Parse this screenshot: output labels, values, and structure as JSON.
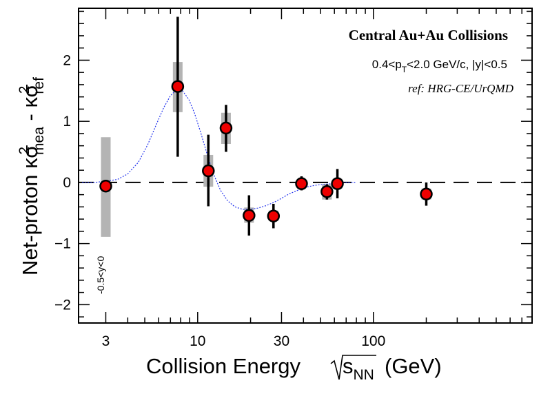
{
  "chart_data": {
    "type": "scatter",
    "title": "Central Au+Au Collisions",
    "subtitle": "0.4<p_T<2.0 GeV/c, |y|<0.5",
    "ref_note": "ref: HRG-CE/UrQMD",
    "side_note": "-0.5<y<0",
    "xlabel": {
      "main": "Collision Energy",
      "sqrt": "s",
      "sub": "NN",
      "unit": "(GeV)"
    },
    "ylabel": {
      "prefix": "Net-proton κσ",
      "sup1": "2",
      "sub1": "mea",
      "mid": " - κσ",
      "sup2": "2",
      "sub2": "ref"
    },
    "x_scale": "log",
    "xlim": [
      2.1,
      800
    ],
    "ylim": [
      -2.3,
      2.85
    ],
    "xticks": [
      3,
      10,
      30,
      100
    ],
    "xtick_labels": [
      "3",
      "10",
      "30",
      "100"
    ],
    "yticks": [
      -2,
      -1,
      0,
      1,
      2
    ],
    "ytick_labels": [
      "−2",
      "−1",
      "0",
      "1",
      "2"
    ],
    "reference_line": 0,
    "points": [
      {
        "x": 3.0,
        "y": -0.06,
        "stat": [
          -0.06,
          -0.06
        ],
        "sys": [
          -0.89,
          0.74
        ]
      },
      {
        "x": 7.7,
        "y": 1.57,
        "stat": [
          0.42,
          2.71
        ],
        "sys": [
          1.15,
          1.97
        ]
      },
      {
        "x": 11.5,
        "y": 0.19,
        "stat": [
          -0.39,
          0.78
        ],
        "sys": [
          -0.07,
          0.45
        ]
      },
      {
        "x": 14.5,
        "y": 0.89,
        "stat": [
          0.5,
          1.27
        ],
        "sys": [
          0.63,
          1.14
        ]
      },
      {
        "x": 19.6,
        "y": -0.54,
        "stat": [
          -0.87,
          -0.21
        ],
        "sys": [
          -0.66,
          -0.41
        ]
      },
      {
        "x": 27,
        "y": -0.55,
        "stat": [
          -0.75,
          -0.35
        ],
        "sys": [
          -0.63,
          -0.46
        ]
      },
      {
        "x": 39,
        "y": -0.02,
        "stat": [
          -0.13,
          0.1
        ],
        "sys": [
          -0.08,
          0.04
        ]
      },
      {
        "x": 54.4,
        "y": -0.15,
        "stat": [
          -0.28,
          -0.03
        ],
        "sys": [
          -0.28,
          -0.03
        ]
      },
      {
        "x": 62.4,
        "y": -0.02,
        "stat": [
          -0.26,
          0.22
        ],
        "sys": [
          -0.1,
          0.06
        ]
      },
      {
        "x": 200,
        "y": -0.19,
        "stat": [
          -0.38,
          0.0
        ],
        "sys": [
          -0.28,
          -0.1
        ]
      }
    ],
    "curve": {
      "x": [
        2.2,
        2.6,
        3.0,
        3.5,
        4.0,
        4.6,
        5.2,
        5.8,
        6.4,
        7.0,
        7.6,
        8.2,
        8.9,
        9.6,
        10.4,
        11.3,
        12.3,
        13.5,
        14.8,
        16.3,
        18.0,
        20.0,
        22.0,
        24.5,
        27.0,
        30.0,
        33.0,
        37.0,
        41.0,
        46.0,
        52.0,
        58.0,
        65.0,
        72.0,
        80.0
      ],
      "y": [
        0.0,
        0.0,
        0.02,
        0.05,
        0.14,
        0.33,
        0.62,
        0.94,
        1.22,
        1.42,
        1.52,
        1.5,
        1.36,
        1.13,
        0.82,
        0.47,
        0.14,
        -0.13,
        -0.3,
        -0.4,
        -0.44,
        -0.44,
        -0.42,
        -0.38,
        -0.33,
        -0.26,
        -0.19,
        -0.13,
        -0.08,
        -0.05,
        -0.03,
        -0.02,
        -0.01,
        0.0,
        0.0
      ]
    },
    "grid": false,
    "colors": {
      "marker_fill": "#ee0000",
      "marker_edge": "#000000",
      "sys_band": "#b4b4b4",
      "curve": "#2233ee",
      "refline": "#000000"
    }
  }
}
